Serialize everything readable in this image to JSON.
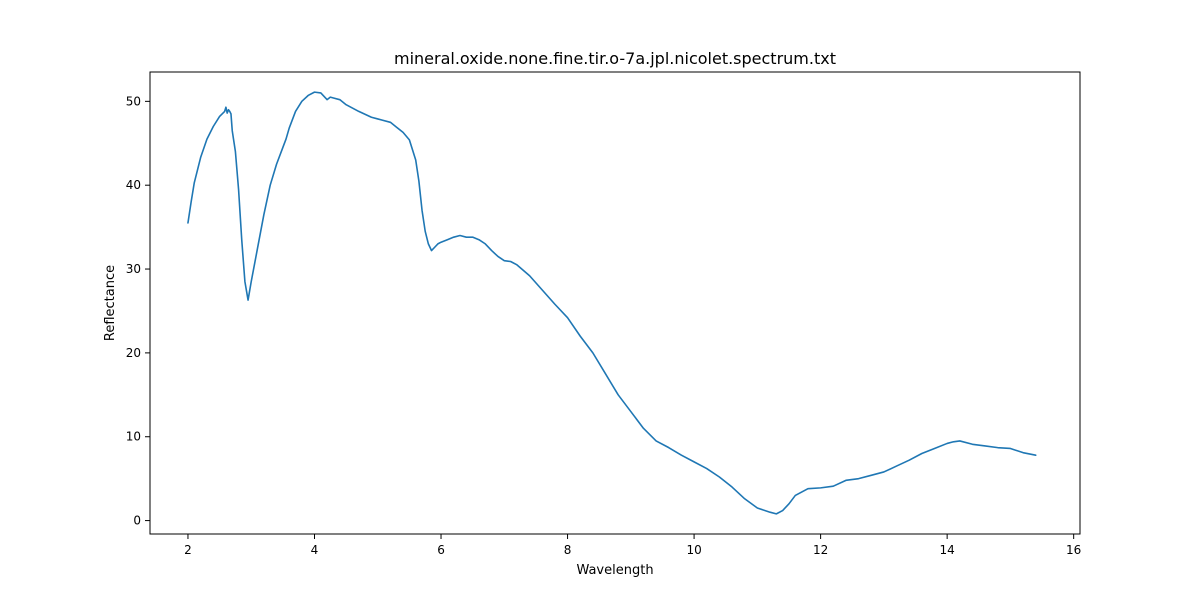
{
  "chart_data": {
    "type": "line",
    "title": "mineral.oxide.none.fine.tir.o-7a.jpl.nicolet.spectrum.txt",
    "xlabel": "Wavelength",
    "ylabel": "Reflectance",
    "xlim": [
      1.4,
      16.1
    ],
    "ylim": [
      -1.6,
      53.5
    ],
    "xticks": [
      2,
      4,
      6,
      8,
      10,
      12,
      14,
      16
    ],
    "yticks": [
      0,
      10,
      20,
      30,
      40,
      50
    ],
    "grid": false,
    "colors": {
      "line": "#1f77b4"
    },
    "series": [
      {
        "x": [
          2.0,
          2.05,
          2.1,
          2.2,
          2.3,
          2.4,
          2.5,
          2.58,
          2.6,
          2.62,
          2.64,
          2.66,
          2.68,
          2.7,
          2.72,
          2.75,
          2.8,
          2.85,
          2.9,
          2.95,
          3.0,
          3.1,
          3.2,
          3.3,
          3.4,
          3.5,
          3.55,
          3.6,
          3.7,
          3.8,
          3.9,
          4.0,
          4.1,
          4.2,
          4.25,
          4.3,
          4.4,
          4.5,
          4.7,
          4.9,
          5.0,
          5.2,
          5.3,
          5.4,
          5.5,
          5.6,
          5.65,
          5.7,
          5.75,
          5.8,
          5.85,
          5.9,
          5.95,
          6.0,
          6.1,
          6.2,
          6.3,
          6.4,
          6.5,
          6.6,
          6.7,
          6.8,
          6.9,
          7.0,
          7.1,
          7.2,
          7.4,
          7.6,
          7.8,
          8.0,
          8.2,
          8.4,
          8.6,
          8.8,
          9.0,
          9.2,
          9.4,
          9.6,
          9.8,
          10.0,
          10.2,
          10.4,
          10.6,
          10.8,
          11.0,
          11.2,
          11.3,
          11.4,
          11.5,
          11.6,
          11.8,
          12.0,
          12.2,
          12.4,
          12.6,
          12.8,
          13.0,
          13.2,
          13.4,
          13.6,
          13.8,
          14.0,
          14.1,
          14.2,
          14.4,
          14.6,
          14.8,
          15.0,
          15.2,
          15.4
        ],
        "y": [
          35.5,
          38.0,
          40.3,
          43.3,
          45.5,
          47.0,
          48.2,
          48.8,
          49.3,
          48.6,
          49.0,
          48.8,
          48.5,
          46.5,
          45.5,
          44.0,
          39.5,
          33.5,
          28.5,
          26.3,
          28.5,
          32.5,
          36.5,
          40.0,
          42.5,
          44.5,
          45.5,
          46.8,
          48.8,
          50.0,
          50.7,
          51.1,
          51.0,
          50.2,
          50.5,
          50.4,
          50.2,
          49.6,
          48.8,
          48.1,
          47.9,
          47.5,
          46.9,
          46.3,
          45.4,
          43.0,
          40.5,
          37.0,
          34.5,
          33.0,
          32.2,
          32.6,
          33.0,
          33.2,
          33.5,
          33.8,
          34.0,
          33.8,
          33.8,
          33.5,
          33.0,
          32.2,
          31.5,
          31.0,
          30.9,
          30.5,
          29.2,
          27.5,
          25.8,
          24.2,
          22.0,
          20.0,
          17.5,
          15.0,
          13.0,
          11.0,
          9.5,
          8.7,
          7.8,
          7.0,
          6.2,
          5.2,
          4.0,
          2.6,
          1.5,
          1.0,
          0.8,
          1.2,
          2.0,
          3.0,
          3.8,
          3.9,
          4.1,
          4.8,
          5.0,
          5.4,
          5.8,
          6.5,
          7.2,
          8.0,
          8.6,
          9.2,
          9.4,
          9.5,
          9.1,
          8.9,
          8.7,
          8.6,
          8.1,
          7.8
        ]
      }
    ]
  }
}
